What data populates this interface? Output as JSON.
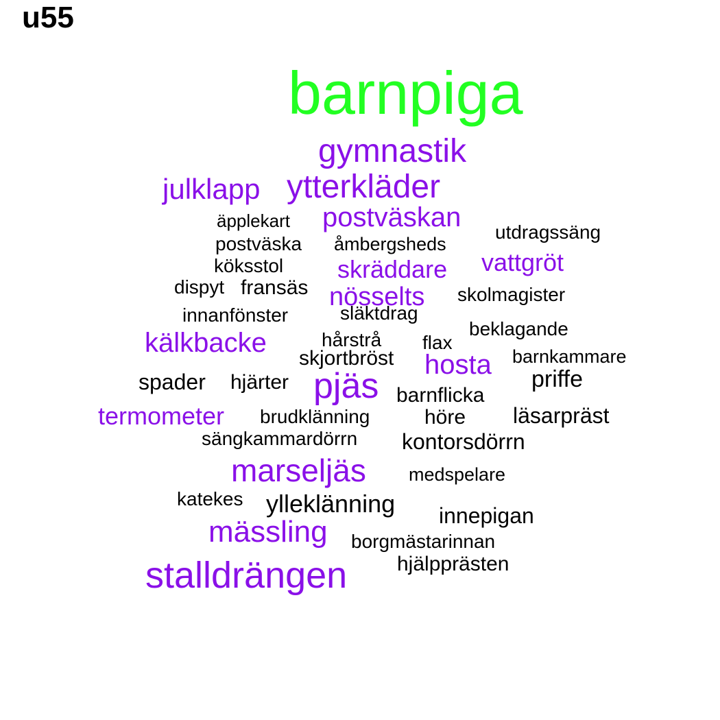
{
  "label": "u55",
  "colors": {
    "highest": "#22ff22",
    "high": "#8a10e8",
    "normal": "#000000"
  },
  "words": [
    {
      "text": "barnpiga",
      "tier": "highest"
    },
    {
      "text": "gymnastik",
      "tier": "high"
    },
    {
      "text": "julklapp",
      "tier": "high"
    },
    {
      "text": "ytterkläder",
      "tier": "high"
    },
    {
      "text": "äpplekart",
      "tier": "normal"
    },
    {
      "text": "postväskan",
      "tier": "high"
    },
    {
      "text": "utdragssäng",
      "tier": "normal"
    },
    {
      "text": "postväska",
      "tier": "normal"
    },
    {
      "text": "åmbergsheds",
      "tier": "normal"
    },
    {
      "text": "vattgröt",
      "tier": "high"
    },
    {
      "text": "köksstol",
      "tier": "normal"
    },
    {
      "text": "skräddare",
      "tier": "high"
    },
    {
      "text": "dispyt",
      "tier": "normal"
    },
    {
      "text": "fransäs",
      "tier": "normal"
    },
    {
      "text": "nösselts",
      "tier": "high"
    },
    {
      "text": "skolmagister",
      "tier": "normal"
    },
    {
      "text": "innanfönster",
      "tier": "normal"
    },
    {
      "text": "släktdrag",
      "tier": "normal"
    },
    {
      "text": "beklagande",
      "tier": "normal"
    },
    {
      "text": "kälkbacke",
      "tier": "high"
    },
    {
      "text": "hårstrå",
      "tier": "normal"
    },
    {
      "text": "flax",
      "tier": "normal"
    },
    {
      "text": "skjortbröst",
      "tier": "normal"
    },
    {
      "text": "hosta",
      "tier": "high"
    },
    {
      "text": "barnkammare",
      "tier": "normal"
    },
    {
      "text": "spader",
      "tier": "normal"
    },
    {
      "text": "hjärter",
      "tier": "normal"
    },
    {
      "text": "pjäs",
      "tier": "high"
    },
    {
      "text": "priffe",
      "tier": "normal"
    },
    {
      "text": "barnflicka",
      "tier": "normal"
    },
    {
      "text": "termometer",
      "tier": "high"
    },
    {
      "text": "brudklänning",
      "tier": "normal"
    },
    {
      "text": "höre",
      "tier": "normal"
    },
    {
      "text": "läsarpräst",
      "tier": "normal"
    },
    {
      "text": "sängkammardörrn",
      "tier": "normal"
    },
    {
      "text": "kontorsdörrn",
      "tier": "normal"
    },
    {
      "text": "marseljäs",
      "tier": "high"
    },
    {
      "text": "medspelare",
      "tier": "normal"
    },
    {
      "text": "katekes",
      "tier": "normal"
    },
    {
      "text": "ylleklänning",
      "tier": "normal"
    },
    {
      "text": "innepigan",
      "tier": "normal"
    },
    {
      "text": "mässling",
      "tier": "high"
    },
    {
      "text": "borgmästarinnan",
      "tier": "normal"
    },
    {
      "text": "hjälpprästen",
      "tier": "normal"
    },
    {
      "text": "stalldrängen",
      "tier": "high"
    }
  ]
}
